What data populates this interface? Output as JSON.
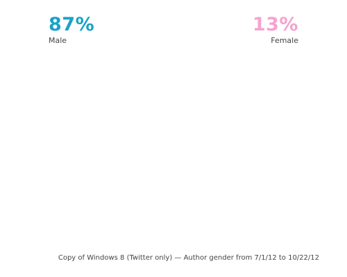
{
  "chart_data": {
    "type": "pie",
    "slices": [
      {
        "label": "Male",
        "value": 87,
        "display": "87%",
        "color": "#1ba1c8"
      },
      {
        "label": "Female",
        "value": 13,
        "display": "13%",
        "color": "#f5a3cf"
      }
    ],
    "caption": "Copy of Windows 8 (Twitter only) — Author gender from 7/1/12 to 10/22/12"
  }
}
